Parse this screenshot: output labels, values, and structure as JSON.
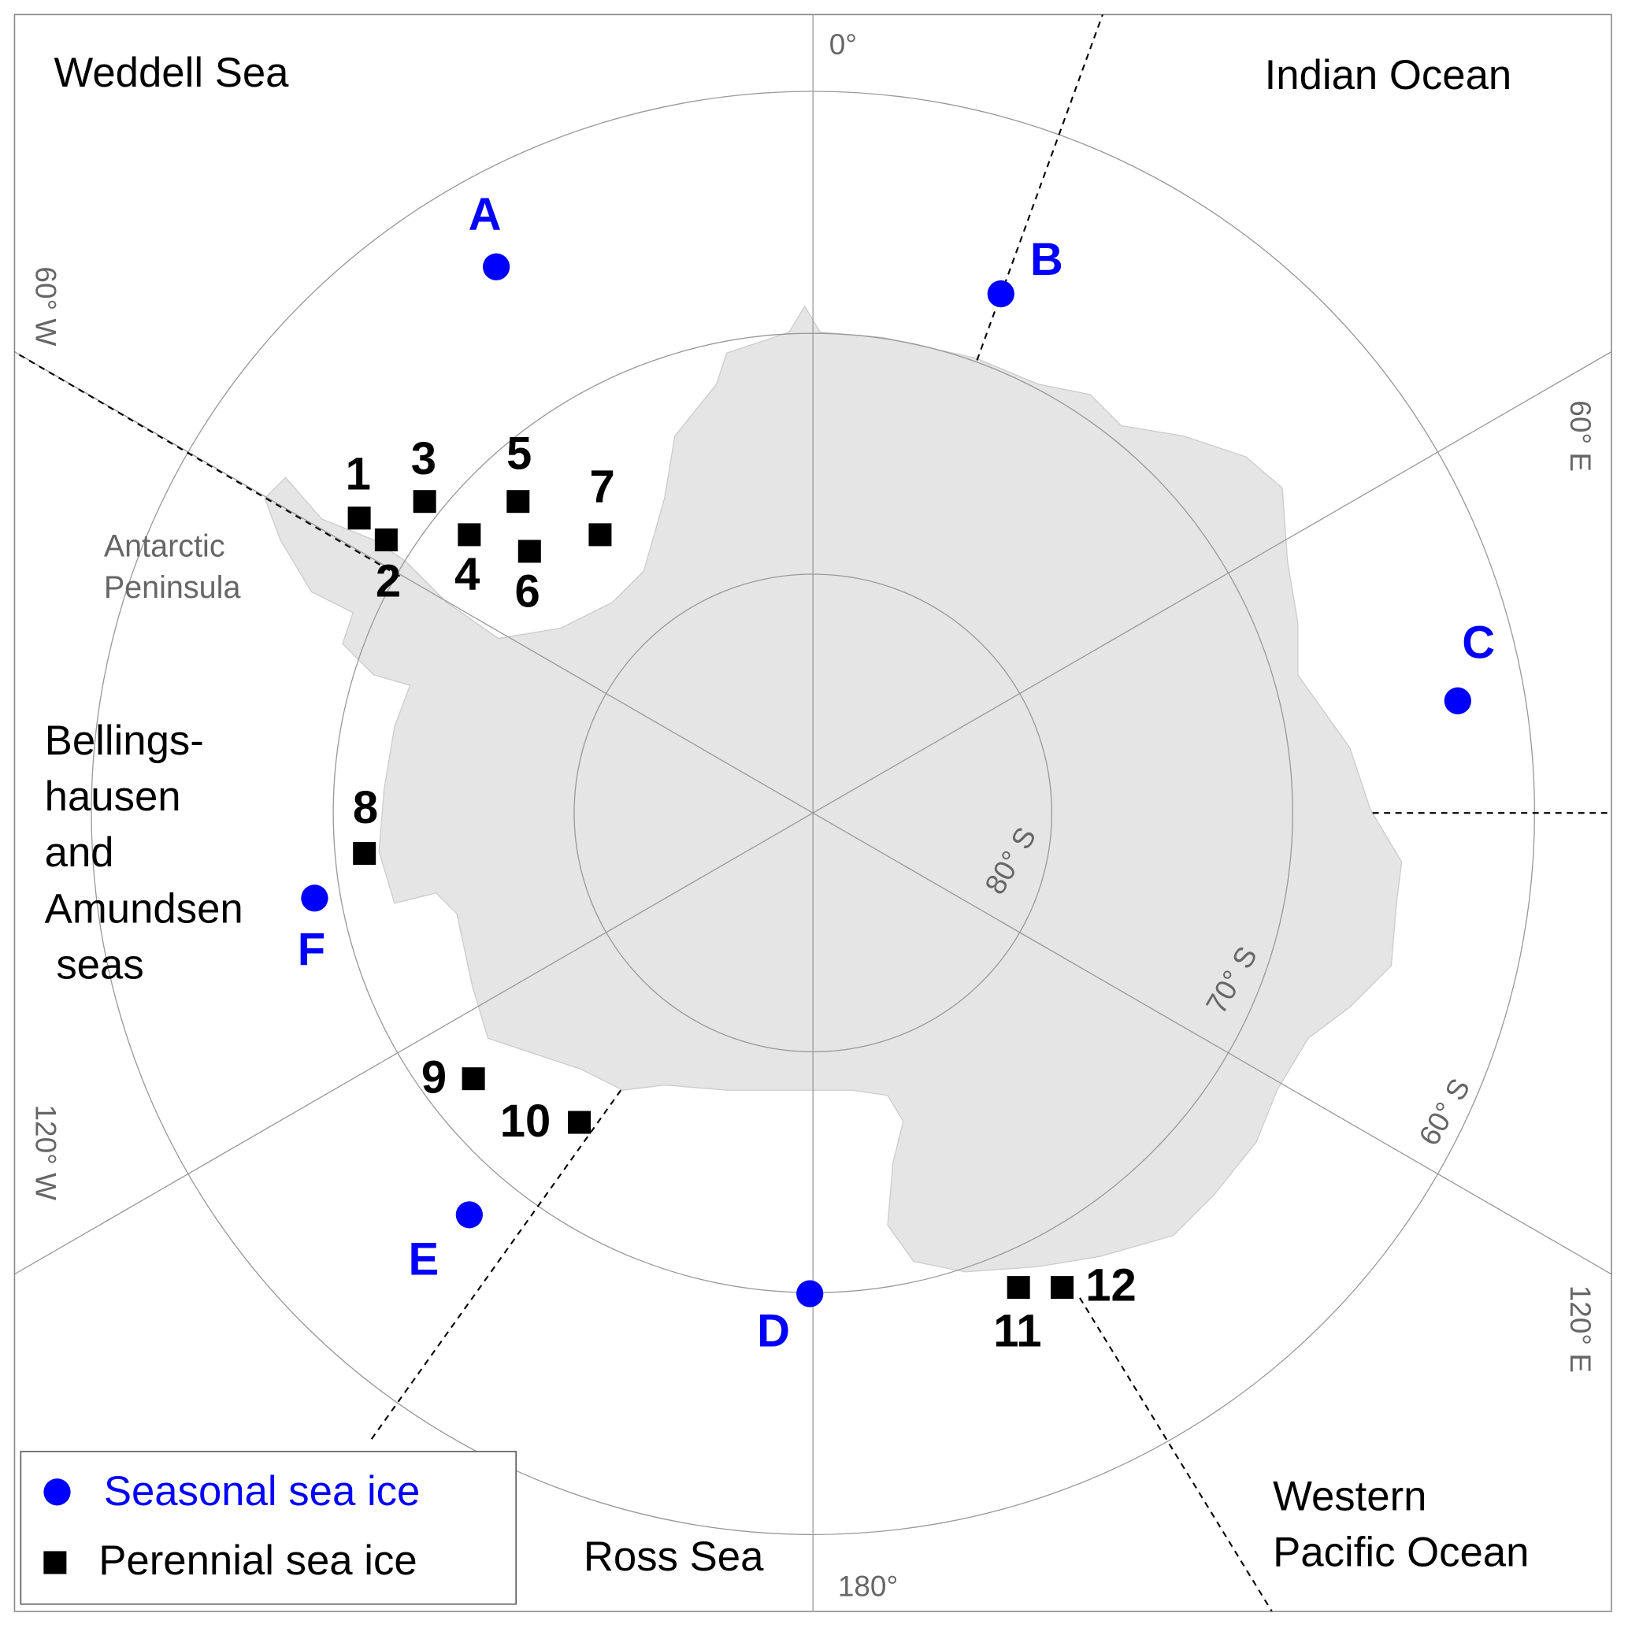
{
  "regions": [
    {
      "lines": [
        "Weddell Sea"
      ]
    },
    {
      "lines": [
        "Indian Ocean"
      ]
    },
    {
      "lines": [
        "Bellings-",
        "hausen",
        "and",
        "Amundsen",
        " seas"
      ]
    },
    {
      "lines": [
        "Ross Sea"
      ]
    },
    {
      "lines": [
        "Western",
        "Pacific Ocean"
      ]
    }
  ],
  "peninsula_label": [
    "Antarctic",
    "Peninsula"
  ],
  "longitude_labels": [
    "0°",
    "60° E",
    "120° E",
    "180°",
    "120° W",
    "60° W"
  ],
  "latitude_labels": [
    "80° S",
    "70° S",
    "60° S"
  ],
  "seasonal_sites": [
    "A",
    "B",
    "C",
    "D",
    "E",
    "F"
  ],
  "perennial_sites": [
    "1",
    "2",
    "3",
    "4",
    "5",
    "6",
    "7",
    "8",
    "9",
    "10",
    "11",
    "12"
  ],
  "legend": {
    "seasonal": "Seasonal sea ice",
    "perennial": "Perennial sea ice"
  }
}
